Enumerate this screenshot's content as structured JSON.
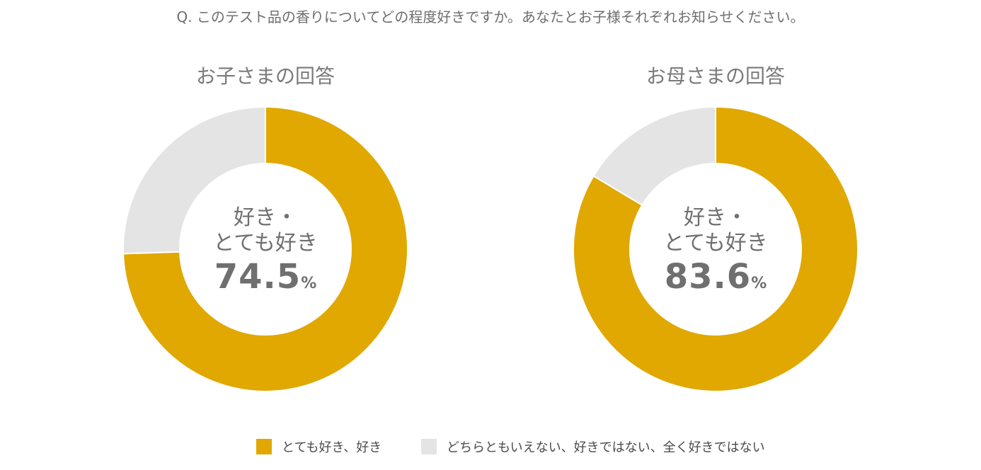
{
  "question": "Q. このテスト品の香りについてどの程度好きですか。あなたとお子様それぞれお知らせください。",
  "colors": {
    "like": "#E0A800",
    "other": "#E5E4E5",
    "text": "#6E6E6E"
  },
  "center_label": {
    "line1": "好き・",
    "line2": "とても好き"
  },
  "chart_data": [
    {
      "type": "pie",
      "title": "お子さまの回答",
      "categories": [
        "とても好き、好き",
        "どちらともいえない、好きではない、全く好きではない"
      ],
      "values": [
        74.5,
        25.5
      ],
      "center_value": "74.5",
      "unit": "%"
    },
    {
      "type": "pie",
      "title": "お母さまの回答",
      "categories": [
        "とても好き、好き",
        "どちらともいえない、好きではない、全く好きではない"
      ],
      "values": [
        83.6,
        16.4
      ],
      "center_value": "83.6",
      "unit": "%"
    }
  ],
  "legend": [
    {
      "label": "とても好き、好き",
      "color": "#E0A800"
    },
    {
      "label": "どちらともいえない、好きではない、全く好きではない",
      "color": "#E5E4E5"
    }
  ]
}
